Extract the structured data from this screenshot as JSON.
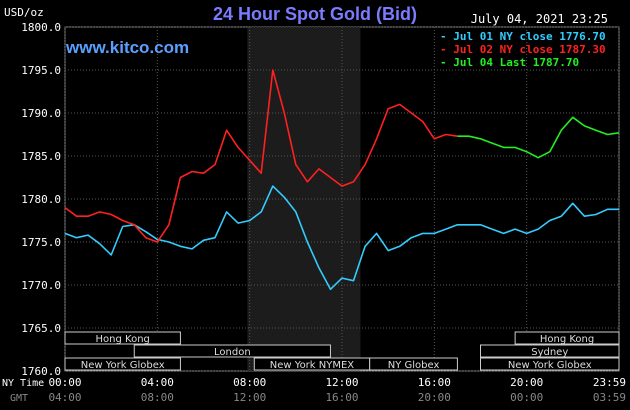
{
  "header": {
    "title": "24 Hour Spot Gold (Bid)",
    "units": "USD/oz",
    "site": "www.kitco.com",
    "datetime": "July 04, 2021 23:25"
  },
  "legend": [
    {
      "label": "- Jul 01 NY close 1776.70",
      "color": "#33ccff"
    },
    {
      "label": "- Jul 02 NY close 1787.30",
      "color": "#ff2020"
    },
    {
      "label": "- Jul 04 Last 1787.70",
      "color": "#22ee22"
    }
  ],
  "axis_labels": {
    "ny_time": "NY Time",
    "gmt": "GMT"
  },
  "chart_data": {
    "type": "line",
    "title": "24 Hour Spot Gold (Bid)",
    "ylabel": "USD/oz",
    "ylim": [
      1760.0,
      1800.0
    ],
    "xlim": [
      0,
      24
    ],
    "grid": true,
    "y_ticks": [
      "1760.0",
      "1765.0",
      "1770.0",
      "1775.0",
      "1780.0",
      "1785.0",
      "1790.0",
      "1795.0",
      "1800.0"
    ],
    "x_ticks_ny": [
      "00:00",
      "04:00",
      "08:00",
      "12:00",
      "16:00",
      "20:00",
      "23:59"
    ],
    "x_ticks_gmt": [
      "04:00",
      "08:00",
      "12:00",
      "16:00",
      "20:00",
      "00:00",
      "03:59"
    ],
    "highlight_x": [
      7.9,
      12.8
    ],
    "sessions": [
      {
        "name": "Hong Kong",
        "start": 0,
        "end": 5.0,
        "row": 0
      },
      {
        "name": "London",
        "start": 3.0,
        "end": 11.5,
        "row": 1
      },
      {
        "name": "New York Globex",
        "start": 0,
        "end": 5.0,
        "row": 2
      },
      {
        "name": "New York NYMEX",
        "start": 8.2,
        "end": 13.2,
        "row": 2
      },
      {
        "name": "NY Globex",
        "start": 13.2,
        "end": 17.0,
        "row": 2
      },
      {
        "name": "Hong Kong",
        "start": 19.5,
        "end": 24,
        "row": 0
      },
      {
        "name": "Sydney",
        "start": 18.0,
        "end": 24,
        "row": 1
      },
      {
        "name": "New York Globex",
        "start": 18.0,
        "end": 24,
        "row": 2
      }
    ],
    "series": [
      {
        "name": "Jul 01 NY close 1776.70",
        "color": "#33ccff",
        "x": [
          0,
          0.5,
          1,
          1.5,
          2,
          2.5,
          3,
          3.5,
          4,
          4.5,
          5,
          5.5,
          6,
          6.5,
          7,
          7.5,
          8,
          8.5,
          9,
          9.5,
          10,
          10.5,
          11,
          11.5,
          12,
          12.5,
          13,
          13.5,
          14,
          14.5,
          15,
          15.5,
          16,
          16.5,
          17,
          17.5,
          18,
          18.5,
          19,
          19.5,
          20,
          20.5,
          21,
          21.5,
          22,
          22.5,
          23,
          23.5,
          24
        ],
        "y": [
          1776.0,
          1775.5,
          1775.8,
          1774.8,
          1773.5,
          1776.8,
          1777.0,
          1776.2,
          1775.3,
          1775.0,
          1774.5,
          1774.2,
          1775.2,
          1775.5,
          1778.5,
          1777.2,
          1777.5,
          1778.5,
          1781.5,
          1780.2,
          1778.5,
          1775.0,
          1772.0,
          1769.5,
          1770.8,
          1770.5,
          1774.5,
          1776.0,
          1774.0,
          1774.5,
          1775.5,
          1776.0,
          1776.0,
          1776.5,
          1777.0,
          1777.0,
          1777.0,
          1776.5,
          1776.0,
          1776.5,
          1776.0,
          1776.5,
          1777.5,
          1778.0,
          1779.5,
          1778.0,
          1778.2,
          1778.8,
          1778.8
        ]
      },
      {
        "name": "Jul 02 NY close 1787.30",
        "color": "#ff2020",
        "x": [
          0,
          0.5,
          1,
          1.5,
          2,
          2.5,
          3,
          3.5,
          4,
          4.5,
          5,
          5.5,
          6,
          6.5,
          7,
          7.5,
          8,
          8.5,
          9,
          9.5,
          10,
          10.5,
          11,
          11.5,
          12,
          12.5,
          13,
          13.5,
          14,
          14.5,
          15,
          15.5,
          16,
          16.5,
          17
        ],
        "y": [
          1779.0,
          1778.0,
          1778.0,
          1778.5,
          1778.2,
          1777.5,
          1777.0,
          1775.5,
          1775.0,
          1777.0,
          1782.5,
          1783.2,
          1783.0,
          1784.0,
          1788.0,
          1786.0,
          1784.5,
          1783.0,
          1795.0,
          1790.0,
          1784.0,
          1782.0,
          1783.5,
          1782.5,
          1781.5,
          1782.0,
          1784.0,
          1787.0,
          1790.5,
          1791.0,
          1790.0,
          1789.0,
          1787.0,
          1787.5,
          1787.3
        ]
      },
      {
        "name": "Jul 04 Last 1787.70",
        "color": "#22ee22",
        "x": [
          17,
          17.5,
          18,
          18.5,
          19,
          19.5,
          20,
          20.5,
          21,
          21.5,
          22,
          22.5,
          23,
          23.5,
          24
        ],
        "y": [
          1787.3,
          1787.3,
          1787.0,
          1786.5,
          1786.0,
          1786.0,
          1785.5,
          1784.8,
          1785.5,
          1788.0,
          1789.5,
          1788.5,
          1788.0,
          1787.5,
          1787.7
        ]
      }
    ]
  }
}
